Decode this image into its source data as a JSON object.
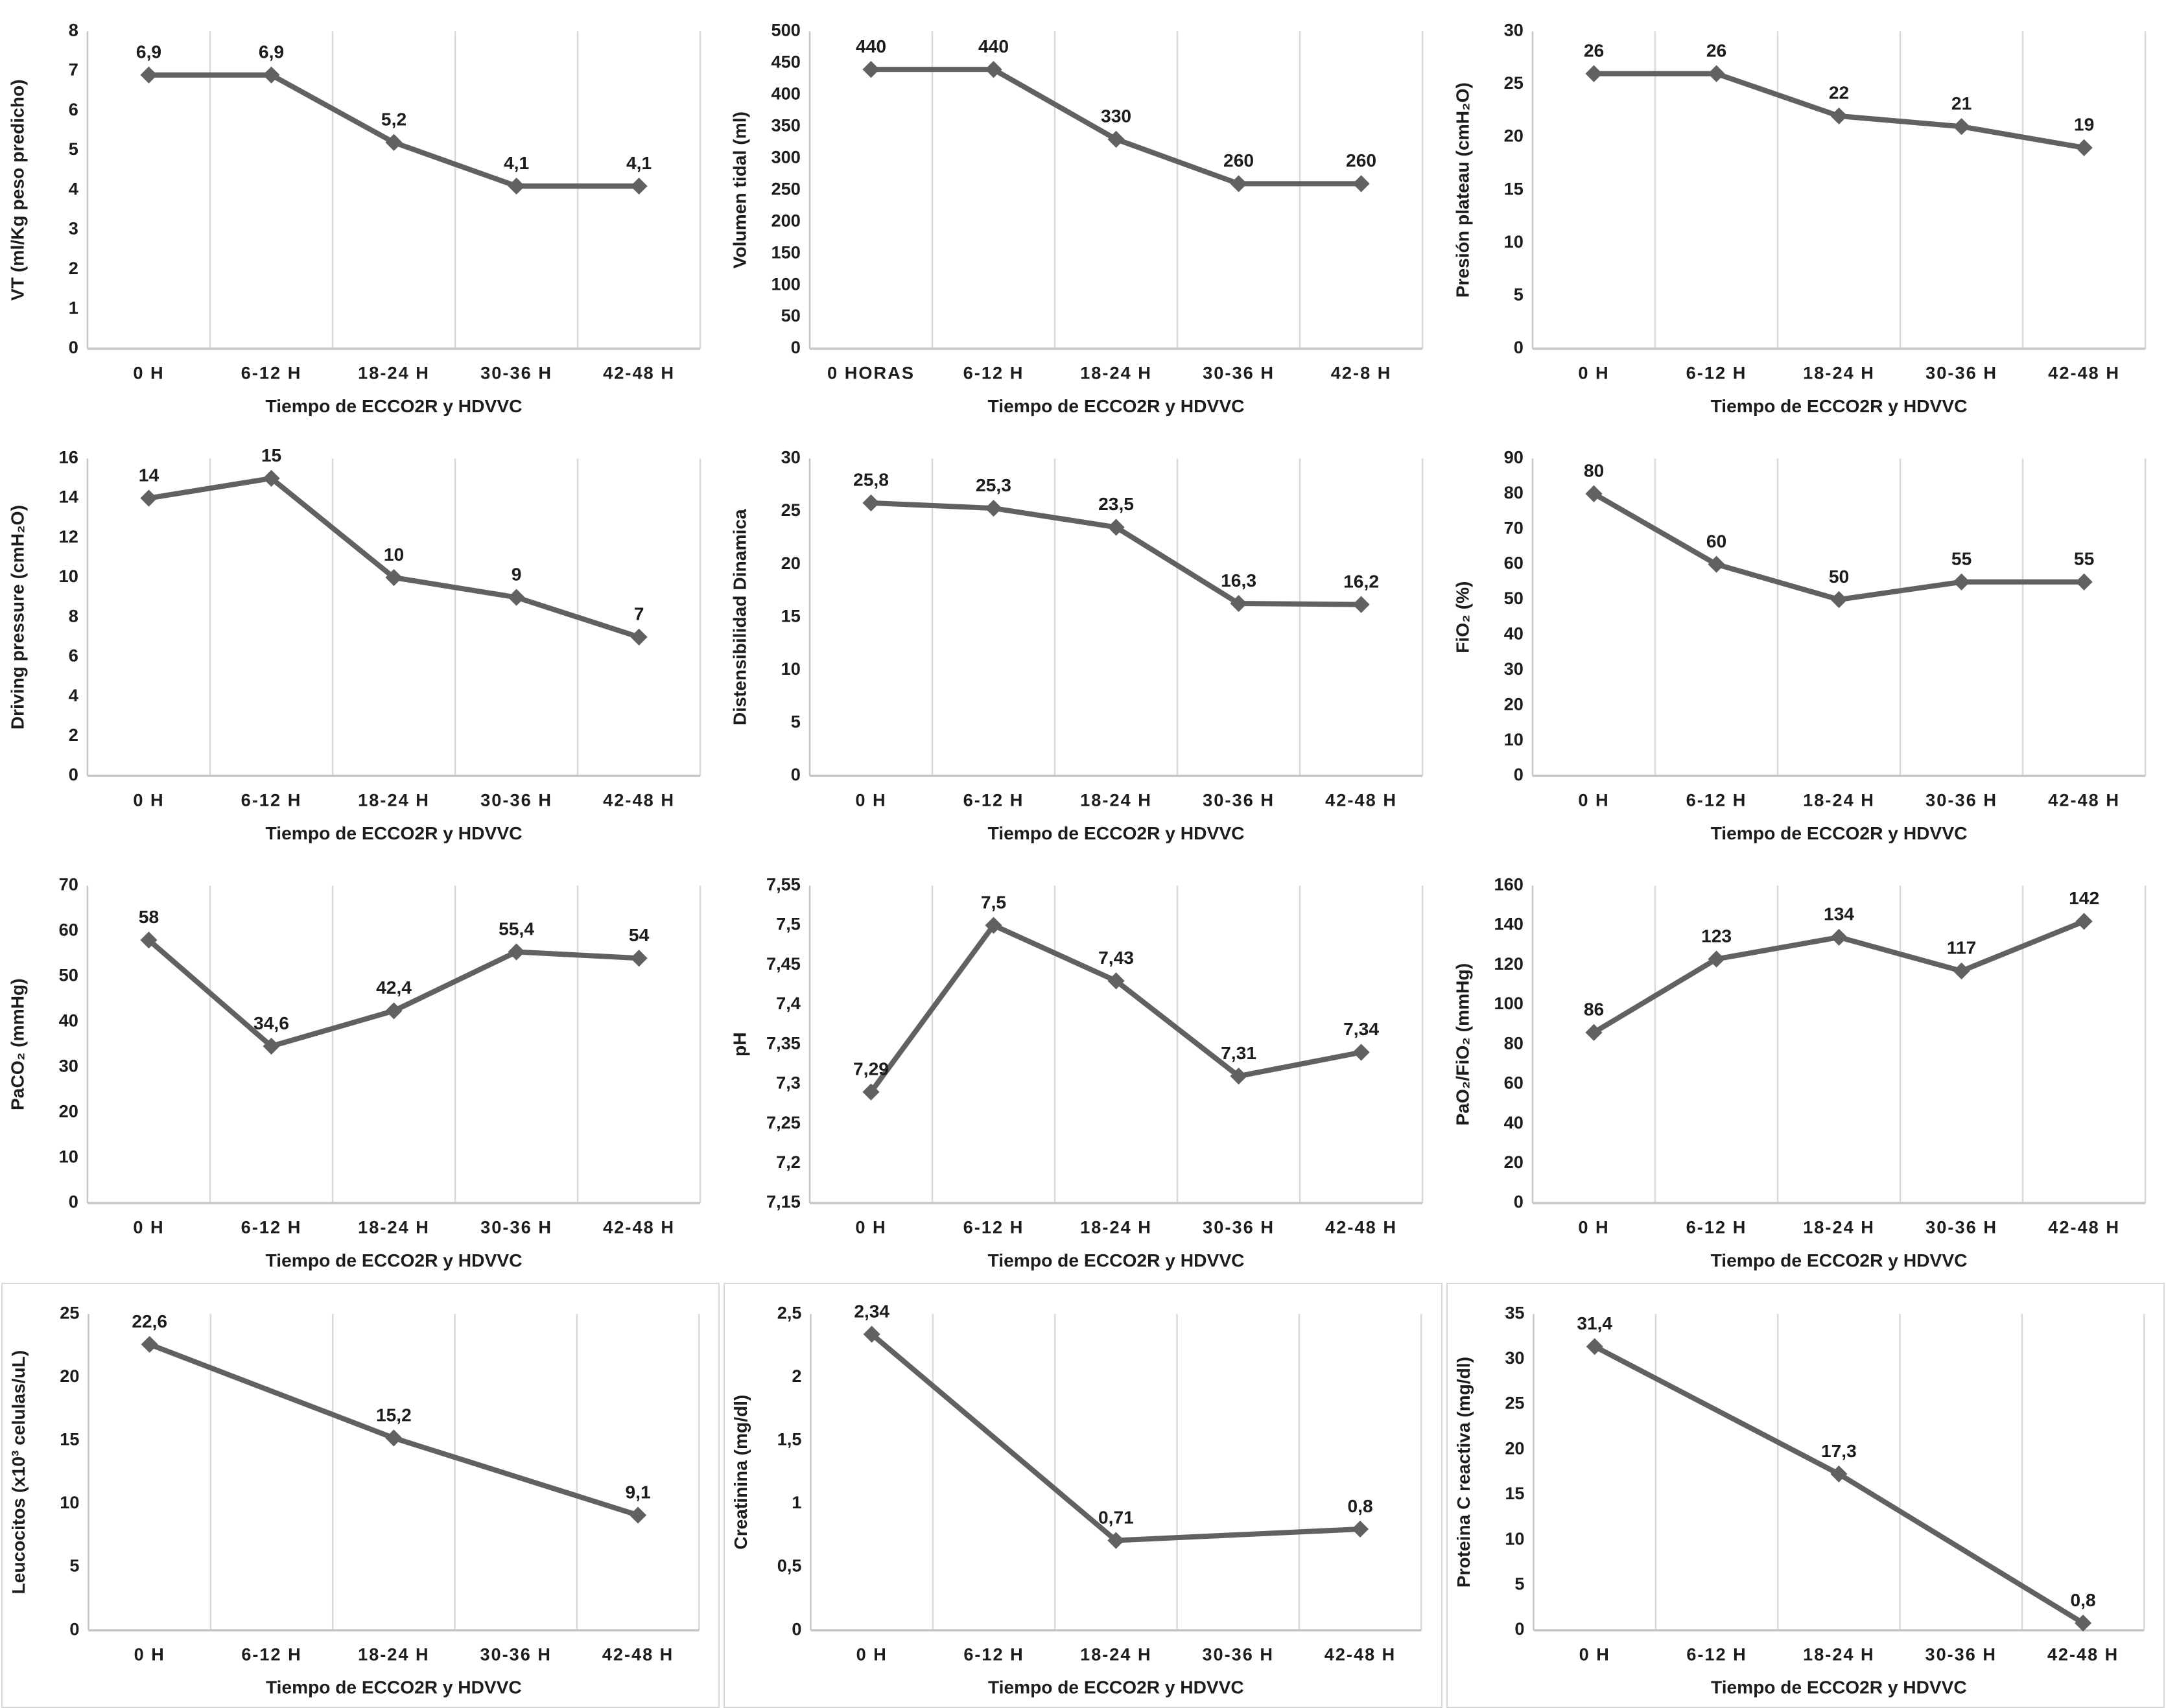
{
  "figure": {
    "line_color": "#616161",
    "marker_color": "#616161",
    "grid_color": "#d9d9d9",
    "axis_color": "#c6c6c6",
    "text_color": "#1c1c1c"
  },
  "chart_data": [
    {
      "type": "line",
      "ylabel": "VT (ml/Kg peso predicho)",
      "xlabel": "Tiempo de ECCO2R y HDVVC",
      "categories": [
        "0 H",
        "6-12 H",
        "18-24 H",
        "30-36 H",
        "42-48 H"
      ],
      "values": [
        6.9,
        6.9,
        5.2,
        4.1,
        4.1
      ],
      "point_labels": [
        "6,9",
        "6,9",
        "5,2",
        "4,1",
        "4,1"
      ],
      "ylim": [
        0,
        8
      ],
      "ytick_values": [
        0,
        1,
        2,
        3,
        4,
        5,
        6,
        7,
        8
      ],
      "ytick_labels": [
        "0",
        "1",
        "2",
        "3",
        "4",
        "5",
        "6",
        "7",
        "8"
      ],
      "grid": true,
      "legend": false,
      "bordered": false
    },
    {
      "type": "line",
      "ylabel": "Volumen tidal (ml)",
      "xlabel": "Tiempo de ECCO2R y HDVVC",
      "categories": [
        "0 HORAS",
        "6-12 H",
        "18-24 H",
        "30-36 H",
        "42-8 H"
      ],
      "values": [
        440,
        440,
        330,
        260,
        260
      ],
      "point_labels": [
        "440",
        "440",
        "330",
        "260",
        "260"
      ],
      "ylim": [
        0,
        500
      ],
      "ytick_values": [
        0,
        50,
        100,
        150,
        200,
        250,
        300,
        350,
        400,
        450,
        500
      ],
      "ytick_labels": [
        "0",
        "50",
        "100",
        "150",
        "200",
        "250",
        "300",
        "350",
        "400",
        "450",
        "500"
      ],
      "grid": true,
      "legend": false,
      "bordered": false
    },
    {
      "type": "line",
      "ylabel": "Presión plateau (cmH₂O)",
      "xlabel": "Tiempo de ECCO2R y HDVVC",
      "categories": [
        "0 H",
        "6-12 H",
        "18-24 H",
        "30-36 H",
        "42-48 H"
      ],
      "values": [
        26,
        26,
        22,
        21,
        19
      ],
      "point_labels": [
        "26",
        "26",
        "22",
        "21",
        "19"
      ],
      "ylim": [
        0,
        30
      ],
      "ytick_values": [
        0,
        5,
        10,
        15,
        20,
        25,
        30
      ],
      "ytick_labels": [
        "0",
        "5",
        "10",
        "15",
        "20",
        "25",
        "30"
      ],
      "grid": true,
      "legend": false,
      "bordered": false
    },
    {
      "type": "line",
      "ylabel": "Driving pressure  (cmH₂O)",
      "xlabel": "Tiempo de ECCO2R y HDVVC",
      "categories": [
        "0 H",
        "6-12 H",
        "18-24 H",
        "30-36 H",
        "42-48 H"
      ],
      "values": [
        14,
        15,
        10,
        9,
        7
      ],
      "point_labels": [
        "14",
        "15",
        "10",
        "9",
        "7"
      ],
      "ylim": [
        0,
        16
      ],
      "ytick_values": [
        0,
        2,
        4,
        6,
        8,
        10,
        12,
        14,
        16
      ],
      "ytick_labels": [
        "0",
        "2",
        "4",
        "6",
        "8",
        "10",
        "12",
        "14",
        "16"
      ],
      "grid": true,
      "legend": false,
      "bordered": false
    },
    {
      "type": "line",
      "ylabel": "Distensibilidad Dinamica",
      "xlabel": "Tiempo de ECCO2R y HDVVC",
      "categories": [
        "0 H",
        "6-12 H",
        "18-24 H",
        "30-36 H",
        "42-48 H"
      ],
      "values": [
        25.8,
        25.3,
        23.5,
        16.3,
        16.2
      ],
      "point_labels": [
        "25,8",
        "25,3",
        "23,5",
        "16,3",
        "16,2"
      ],
      "ylim": [
        0,
        30
      ],
      "ytick_values": [
        0,
        5,
        10,
        15,
        20,
        25,
        30
      ],
      "ytick_labels": [
        "0",
        "5",
        "10",
        "15",
        "20",
        "25",
        "30"
      ],
      "grid": true,
      "legend": false,
      "bordered": false
    },
    {
      "type": "line",
      "ylabel": "FiO₂ (%)",
      "xlabel": "Tiempo de ECCO2R y HDVVC",
      "categories": [
        "0 H",
        "6-12 H",
        "18-24 H",
        "30-36 H",
        "42-48 H"
      ],
      "values": [
        80,
        60,
        50,
        55,
        55
      ],
      "point_labels": [
        "80",
        "60",
        "50",
        "55",
        "55"
      ],
      "ylim": [
        0,
        90
      ],
      "ytick_values": [
        0,
        10,
        20,
        30,
        40,
        50,
        60,
        70,
        80,
        90
      ],
      "ytick_labels": [
        "0",
        "10",
        "20",
        "30",
        "40",
        "50",
        "60",
        "70",
        "80",
        "90"
      ],
      "grid": true,
      "legend": false,
      "bordered": false
    },
    {
      "type": "line",
      "ylabel": "PaCO₂ (mmHg)",
      "xlabel": "Tiempo de ECCO2R y HDVVC",
      "categories": [
        "0 H",
        "6-12 H",
        "18-24 H",
        "30-36 H",
        "42-48 H"
      ],
      "values": [
        58,
        34.6,
        42.4,
        55.4,
        54
      ],
      "point_labels": [
        "58",
        "34,6",
        "42,4",
        "55,4",
        "54"
      ],
      "ylim": [
        0,
        70
      ],
      "ytick_values": [
        0,
        10,
        20,
        30,
        40,
        50,
        60,
        70
      ],
      "ytick_labels": [
        "0",
        "10",
        "20",
        "30",
        "40",
        "50",
        "60",
        "70"
      ],
      "grid": true,
      "legend": false,
      "bordered": false
    },
    {
      "type": "line",
      "ylabel": "pH",
      "xlabel": "Tiempo de ECCO2R y HDVVC",
      "categories": [
        "0 H",
        "6-12 H",
        "18-24 H",
        "30-36 H",
        "42-48 H"
      ],
      "values": [
        7.29,
        7.5,
        7.43,
        7.31,
        7.34
      ],
      "point_labels": [
        "7,29",
        "7,5",
        "7,43",
        "7,31",
        "7,34"
      ],
      "ylim": [
        7.15,
        7.55
      ],
      "ytick_values": [
        7.15,
        7.2,
        7.25,
        7.3,
        7.35,
        7.4,
        7.45,
        7.5,
        7.55
      ],
      "ytick_labels": [
        "7,15",
        "7,2",
        "7,25",
        "7,3",
        "7,35",
        "7,4",
        "7,45",
        "7,5",
        "7,55"
      ],
      "grid": true,
      "legend": false,
      "bordered": false
    },
    {
      "type": "line",
      "ylabel": "PaO₂/FiO₂ (mmHg)",
      "xlabel": "Tiempo de ECCO2R y HDVVC",
      "categories": [
        "0 H",
        "6-12 H",
        "18-24 H",
        "30-36 H",
        "42-48 H"
      ],
      "values": [
        86,
        123,
        134,
        117,
        142
      ],
      "point_labels": [
        "86",
        "123",
        "134",
        "117",
        "142"
      ],
      "ylim": [
        0,
        160
      ],
      "ytick_values": [
        0,
        20,
        40,
        60,
        80,
        100,
        120,
        140,
        160
      ],
      "ytick_labels": [
        "0",
        "20",
        "40",
        "60",
        "80",
        "100",
        "120",
        "140",
        "160"
      ],
      "grid": true,
      "legend": false,
      "bordered": false
    },
    {
      "type": "line",
      "ylabel": "Leucocitos (x10³ celulas/uL)",
      "xlabel": "Tiempo de ECCO2R y HDVVC",
      "categories": [
        "0 H",
        "6-12 H",
        "18-24 H",
        "30-36 H",
        "42-48 H"
      ],
      "values": [
        22.6,
        null,
        15.2,
        null,
        9.1
      ],
      "point_labels": [
        "22,6",
        "",
        "15,2",
        "",
        "9,1"
      ],
      "ylim": [
        0,
        25
      ],
      "ytick_values": [
        0,
        5,
        10,
        15,
        20,
        25
      ],
      "ytick_labels": [
        "0",
        "5",
        "10",
        "15",
        "20",
        "25"
      ],
      "grid": true,
      "legend": false,
      "bordered": true
    },
    {
      "type": "line",
      "ylabel": "Creatinina (mg/dl)",
      "xlabel": "Tiempo de ECCO2R y HDVVC",
      "categories": [
        "0 H",
        "6-12 H",
        "18-24 H",
        "30-36 H",
        "42-48 H"
      ],
      "values": [
        2.34,
        null,
        0.71,
        null,
        0.8
      ],
      "point_labels": [
        "2,34",
        "",
        "0,71",
        "",
        "0,8"
      ],
      "ylim": [
        0,
        2.5
      ],
      "ytick_values": [
        0,
        0.5,
        1,
        1.5,
        2,
        2.5
      ],
      "ytick_labels": [
        "0",
        "0,5",
        "1",
        "1,5",
        "2",
        "2,5"
      ],
      "grid": true,
      "legend": false,
      "bordered": true
    },
    {
      "type": "line",
      "ylabel": "Proteina C reactiva (mg/dl)",
      "xlabel": "Tiempo de ECCO2R y HDVVC",
      "categories": [
        "0 H",
        "6-12 H",
        "18-24 H",
        "30-36 H",
        "42-48 H"
      ],
      "values": [
        31.4,
        null,
        17.3,
        null,
        0.8
      ],
      "point_labels": [
        "31,4",
        "",
        "17,3",
        "",
        "0,8"
      ],
      "ylim": [
        0,
        35
      ],
      "ytick_values": [
        0,
        5,
        10,
        15,
        20,
        25,
        30,
        35
      ],
      "ytick_labels": [
        "0",
        "5",
        "10",
        "15",
        "20",
        "25",
        "30",
        "35"
      ],
      "grid": true,
      "legend": false,
      "bordered": true
    }
  ]
}
